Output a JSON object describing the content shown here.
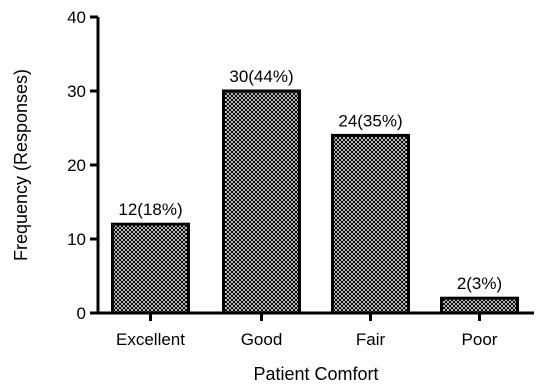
{
  "chart_data": {
    "type": "bar",
    "categories": [
      "Excellent",
      "Good",
      "Fair",
      "Poor"
    ],
    "values": [
      12,
      30,
      24,
      2
    ],
    "data_labels": [
      "12(18%)",
      "30(44%)",
      "24(35%)",
      "2(3%)"
    ],
    "title": "",
    "xlabel": "Patient Comfort",
    "ylabel": "Frequency (Responses)",
    "ylim": [
      0,
      40
    ],
    "yticks": [
      0,
      10,
      20,
      30,
      40
    ],
    "grid": false,
    "bar_fill": "crosshatch",
    "colors": {
      "bar_edge": "#000000",
      "bar_pattern": "#000000",
      "axis": "#000000"
    }
  }
}
